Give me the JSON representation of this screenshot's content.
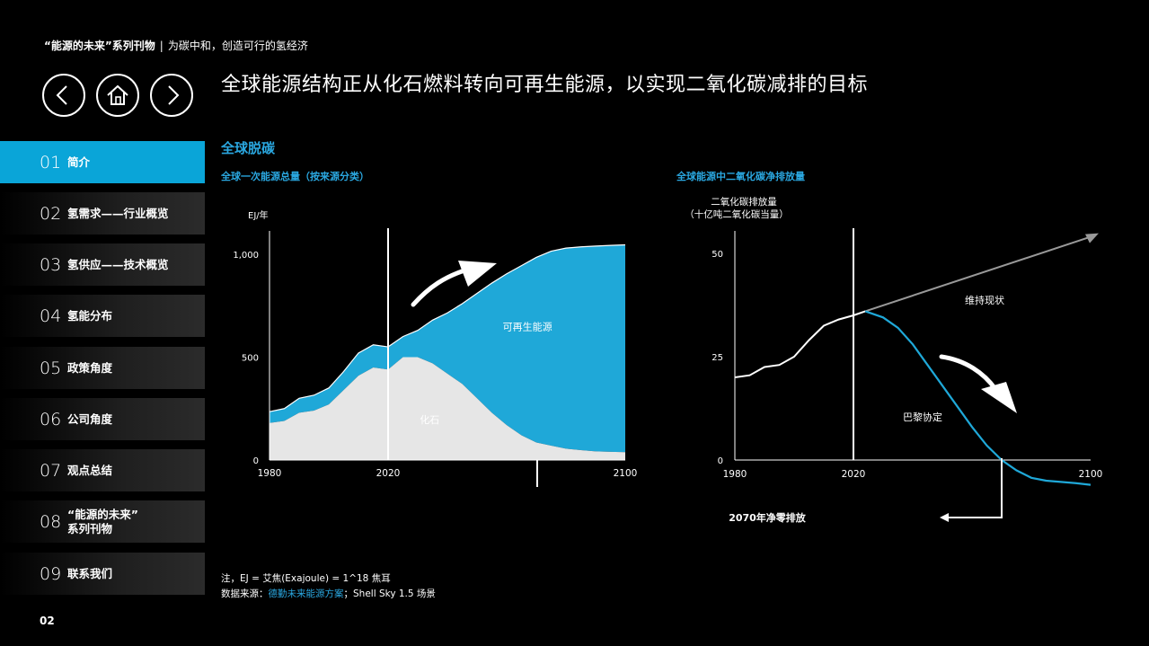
{
  "header": {
    "series_label": "“能源的未来”系列刊物",
    "separator": "|",
    "tagline": "为碳中和，创造可行的氢经济"
  },
  "nav": {
    "back_icon": "chevron-left-icon",
    "home_icon": "home-icon",
    "forward_icon": "chevron-right-icon"
  },
  "page_title": "全球能源结构正从化石燃料转向可再生能源，以实现二氧化碳减排的目标",
  "sidebar": {
    "active_color": "#0aa5d8",
    "items": [
      {
        "num": "01",
        "label": "简介"
      },
      {
        "num": "02",
        "label": "氢需求——行业概览"
      },
      {
        "num": "03",
        "label": "氢供应——技术概览"
      },
      {
        "num": "04",
        "label": "氢能分布"
      },
      {
        "num": "05",
        "label": "政策角度"
      },
      {
        "num": "06",
        "label": "公司角度"
      },
      {
        "num": "07",
        "label": "观点总结"
      },
      {
        "num": "08",
        "label_line1": "“能源的未来”",
        "label_line2": "系列刊物"
      },
      {
        "num": "09",
        "label": "联系我们"
      }
    ]
  },
  "section_title": "全球脱碳",
  "chart_data": [
    {
      "type": "area",
      "title": "全球一次能源总量（按来源分类）",
      "ylabel": "EJ/年",
      "yticks": [
        "0",
        "500",
        "1,000"
      ],
      "xticks": [
        "1980",
        "2020",
        "2100"
      ],
      "xlim": [
        1980,
        2100
      ],
      "ylim": [
        0,
        1000
      ],
      "marker_year": 2020,
      "colors": {
        "fossil": "#e6e6e6",
        "renewable": "#1fa8d8"
      },
      "x": [
        1980,
        1985,
        1990,
        1995,
        2000,
        2005,
        2010,
        2015,
        2020,
        2025,
        2030,
        2035,
        2040,
        2045,
        2050,
        2055,
        2060,
        2065,
        2070,
        2075,
        2080,
        2085,
        2090,
        2095,
        2100
      ],
      "series": [
        {
          "name": "化石",
          "values": [
            180,
            190,
            230,
            240,
            270,
            340,
            410,
            450,
            440,
            500,
            500,
            470,
            420,
            370,
            300,
            230,
            170,
            120,
            85,
            70,
            55,
            48,
            42,
            40,
            38
          ]
        },
        {
          "name": "可再生能源",
          "values": [
            235,
            250,
            300,
            315,
            350,
            430,
            520,
            560,
            550,
            600,
            630,
            680,
            715,
            760,
            810,
            860,
            905,
            945,
            985,
            1015,
            1030,
            1036,
            1040,
            1043,
            1046
          ]
        }
      ],
      "annotations": [
        "可再生能源",
        "化石"
      ]
    },
    {
      "type": "line",
      "title": "全球能源中二氧化碳净排放量",
      "ylabel_line1": "二氧化碳排放量",
      "ylabel_line2": "（十亿吨二氧化碳当量）",
      "yticks": [
        "0",
        "25",
        "50"
      ],
      "xticks": [
        "1980",
        "2020",
        "2100"
      ],
      "xlim": [
        1980,
        2100
      ],
      "ylim": [
        0,
        50
      ],
      "marker_year": 2020,
      "colors": {
        "historical": "#ffffff",
        "paris": "#1fa8d8",
        "bau": "#999999"
      },
      "series": [
        {
          "name": "",
          "x": [
            1980,
            1985,
            1990,
            1995,
            2000,
            2005,
            2010,
            2015,
            2020,
            2024
          ],
          "values": [
            20,
            20.5,
            22.5,
            23,
            25,
            29,
            32.5,
            34,
            35,
            36
          ]
        },
        {
          "name": "巴黎协定",
          "x": [
            2024,
            2030,
            2035,
            2040,
            2045,
            2050,
            2055,
            2060,
            2065,
            2070,
            2075,
            2080,
            2085,
            2090,
            2095,
            2100
          ],
          "values": [
            36,
            34.5,
            32,
            28,
            23,
            18,
            13,
            8,
            3.5,
            0,
            -2.5,
            -4.3,
            -5,
            -5.3,
            -5.6,
            -6
          ]
        },
        {
          "name": "维持现状",
          "x": [
            2024,
            2100
          ],
          "values": [
            36,
            54
          ]
        }
      ],
      "annotations": [
        "维持现状",
        "巴黎协定",
        "2070年净零排放"
      ]
    }
  ],
  "notes": {
    "note1": "注，EJ = 艾焦(Exajoule) = 1^18 焦耳",
    "note2_prefix": "数据来源：",
    "note2_source": "德勤未来能源方案",
    "note2_suffix": "；Shell Sky 1.5 场景"
  },
  "page_number": "02"
}
